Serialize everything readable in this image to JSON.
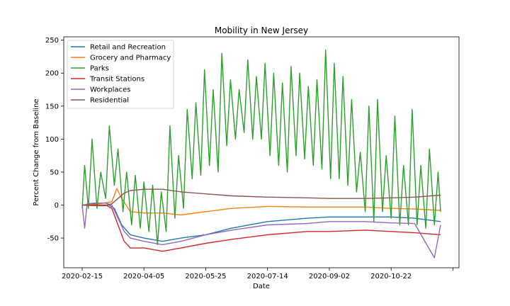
{
  "chart_data": {
    "type": "line",
    "title": "Mobility in New Jersey",
    "xlabel": "Date",
    "ylabel": "Percent Change from Baseline",
    "x_ticks": [
      "2020-02-15",
      "2020-04-05",
      "2020-05-25",
      "2020-07-14",
      "2020-09-02",
      "2020-10-22",
      ""
    ],
    "x_range": [
      "2020-02-15",
      "2020-12-01"
    ],
    "ylim": [
      -95,
      255
    ],
    "y_ticks": [
      -50,
      0,
      50,
      100,
      150,
      200,
      250
    ],
    "grid": false,
    "legend_position": "top-left",
    "series": [
      {
        "name": "Retail and Recreation",
        "color": "#1f77b4",
        "points": [
          [
            "2020-02-15",
            0
          ],
          [
            "2020-02-25",
            2
          ],
          [
            "2020-03-05",
            3
          ],
          [
            "2020-03-12",
            -5
          ],
          [
            "2020-03-18",
            -30
          ],
          [
            "2020-03-25",
            -45
          ],
          [
            "2020-04-05",
            -50
          ],
          [
            "2020-04-20",
            -55
          ],
          [
            "2020-05-05",
            -50
          ],
          [
            "2020-05-25",
            -45
          ],
          [
            "2020-06-15",
            -35
          ],
          [
            "2020-07-14",
            -25
          ],
          [
            "2020-08-15",
            -20
          ],
          [
            "2020-09-02",
            -18
          ],
          [
            "2020-10-01",
            -18
          ],
          [
            "2020-10-22",
            -18
          ],
          [
            "2020-11-10",
            -20
          ],
          [
            "2020-12-01",
            -25
          ]
        ]
      },
      {
        "name": "Grocery and Pharmacy",
        "color": "#ff7f0e",
        "points": [
          [
            "2020-02-15",
            0
          ],
          [
            "2020-02-25",
            1
          ],
          [
            "2020-03-10",
            5
          ],
          [
            "2020-03-14",
            25
          ],
          [
            "2020-03-18",
            10
          ],
          [
            "2020-03-25",
            -10
          ],
          [
            "2020-04-05",
            -12
          ],
          [
            "2020-04-20",
            -12
          ],
          [
            "2020-05-05",
            -15
          ],
          [
            "2020-05-25",
            -10
          ],
          [
            "2020-06-15",
            -5
          ],
          [
            "2020-07-14",
            -2
          ],
          [
            "2020-08-15",
            -3
          ],
          [
            "2020-09-02",
            -3
          ],
          [
            "2020-10-01",
            -3
          ],
          [
            "2020-10-22",
            -5
          ],
          [
            "2020-11-10",
            -6
          ],
          [
            "2020-12-01",
            -8
          ]
        ]
      },
      {
        "name": "Parks",
        "color": "#2ca02c",
        "points": [
          [
            "2020-02-15",
            -5
          ],
          [
            "2020-02-17",
            60
          ],
          [
            "2020-02-20",
            -5
          ],
          [
            "2020-02-23",
            100
          ],
          [
            "2020-02-27",
            -5
          ],
          [
            "2020-03-01",
            50
          ],
          [
            "2020-03-05",
            10
          ],
          [
            "2020-03-08",
            120
          ],
          [
            "2020-03-12",
            30
          ],
          [
            "2020-03-15",
            85
          ],
          [
            "2020-03-19",
            -10
          ],
          [
            "2020-03-22",
            50
          ],
          [
            "2020-03-26",
            -30
          ],
          [
            "2020-03-29",
            45
          ],
          [
            "2020-04-02",
            -35
          ],
          [
            "2020-04-05",
            35
          ],
          [
            "2020-04-09",
            -40
          ],
          [
            "2020-04-12",
            30
          ],
          [
            "2020-04-16",
            -60
          ],
          [
            "2020-04-19",
            20
          ],
          [
            "2020-04-23",
            -40
          ],
          [
            "2020-04-26",
            120
          ],
          [
            "2020-04-30",
            -20
          ],
          [
            "2020-05-03",
            75
          ],
          [
            "2020-05-07",
            -5
          ],
          [
            "2020-05-10",
            145
          ],
          [
            "2020-05-14",
            40
          ],
          [
            "2020-05-17",
            155
          ],
          [
            "2020-05-21",
            45
          ],
          [
            "2020-05-24",
            205
          ],
          [
            "2020-05-28",
            60
          ],
          [
            "2020-05-31",
            175
          ],
          [
            "2020-06-04",
            50
          ],
          [
            "2020-06-07",
            230
          ],
          [
            "2020-06-11",
            90
          ],
          [
            "2020-06-14",
            190
          ],
          [
            "2020-06-18",
            100
          ],
          [
            "2020-06-21",
            175
          ],
          [
            "2020-06-25",
            110
          ],
          [
            "2020-06-28",
            220
          ],
          [
            "2020-07-02",
            100
          ],
          [
            "2020-07-05",
            195
          ],
          [
            "2020-07-09",
            100
          ],
          [
            "2020-07-12",
            215
          ],
          [
            "2020-07-16",
            75
          ],
          [
            "2020-07-19",
            200
          ],
          [
            "2020-07-23",
            60
          ],
          [
            "2020-07-26",
            185
          ],
          [
            "2020-07-30",
            50
          ],
          [
            "2020-08-02",
            210
          ],
          [
            "2020-08-06",
            75
          ],
          [
            "2020-08-09",
            200
          ],
          [
            "2020-08-13",
            70
          ],
          [
            "2020-08-16",
            180
          ],
          [
            "2020-08-20",
            60
          ],
          [
            "2020-08-23",
            190
          ],
          [
            "2020-08-27",
            55
          ],
          [
            "2020-08-30",
            235
          ],
          [
            "2020-09-03",
            40
          ],
          [
            "2020-09-06",
            215
          ],
          [
            "2020-09-10",
            40
          ],
          [
            "2020-09-13",
            195
          ],
          [
            "2020-09-17",
            30
          ],
          [
            "2020-09-20",
            160
          ],
          [
            "2020-09-24",
            20
          ],
          [
            "2020-09-27",
            80
          ],
          [
            "2020-10-01",
            -10
          ],
          [
            "2020-10-04",
            150
          ],
          [
            "2020-10-08",
            -25
          ],
          [
            "2020-10-11",
            160
          ],
          [
            "2020-10-15",
            -10
          ],
          [
            "2020-10-18",
            75
          ],
          [
            "2020-10-22",
            -20
          ],
          [
            "2020-10-25",
            135
          ],
          [
            "2020-10-29",
            -30
          ],
          [
            "2020-11-01",
            60
          ],
          [
            "2020-11-05",
            -30
          ],
          [
            "2020-11-08",
            145
          ],
          [
            "2020-11-12",
            -30
          ],
          [
            "2020-11-15",
            60
          ],
          [
            "2020-11-19",
            -35
          ],
          [
            "2020-11-22",
            85
          ],
          [
            "2020-11-26",
            -30
          ],
          [
            "2020-11-29",
            50
          ],
          [
            "2020-12-01",
            -10
          ]
        ]
      },
      {
        "name": "Transit Stations",
        "color": "#d62728",
        "points": [
          [
            "2020-02-15",
            0
          ],
          [
            "2020-02-25",
            0
          ],
          [
            "2020-03-05",
            0
          ],
          [
            "2020-03-10",
            -5
          ],
          [
            "2020-03-15",
            -30
          ],
          [
            "2020-03-20",
            -55
          ],
          [
            "2020-03-25",
            -65
          ],
          [
            "2020-04-05",
            -65
          ],
          [
            "2020-04-20",
            -70
          ],
          [
            "2020-05-05",
            -65
          ],
          [
            "2020-05-25",
            -58
          ],
          [
            "2020-06-15",
            -52
          ],
          [
            "2020-07-14",
            -45
          ],
          [
            "2020-08-15",
            -40
          ],
          [
            "2020-09-02",
            -40
          ],
          [
            "2020-10-01",
            -38
          ],
          [
            "2020-10-22",
            -40
          ],
          [
            "2020-11-10",
            -42
          ],
          [
            "2020-12-01",
            -45
          ]
        ]
      },
      {
        "name": "Workplaces",
        "color": "#9467bd",
        "points": [
          [
            "2020-02-15",
            0
          ],
          [
            "2020-02-17",
            -35
          ],
          [
            "2020-02-19",
            2
          ],
          [
            "2020-02-25",
            3
          ],
          [
            "2020-03-05",
            3
          ],
          [
            "2020-03-10",
            0
          ],
          [
            "2020-03-15",
            -20
          ],
          [
            "2020-03-20",
            -40
          ],
          [
            "2020-03-25",
            -50
          ],
          [
            "2020-04-05",
            -55
          ],
          [
            "2020-04-20",
            -60
          ],
          [
            "2020-05-05",
            -55
          ],
          [
            "2020-05-25",
            -45
          ],
          [
            "2020-06-15",
            -38
          ],
          [
            "2020-07-14",
            -30
          ],
          [
            "2020-08-15",
            -28
          ],
          [
            "2020-09-02",
            -25
          ],
          [
            "2020-10-01",
            -25
          ],
          [
            "2020-10-22",
            -27
          ],
          [
            "2020-11-10",
            -28
          ],
          [
            "2020-11-26",
            -80
          ],
          [
            "2020-12-01",
            -30
          ]
        ]
      },
      {
        "name": "Residential",
        "color": "#8c564b",
        "points": [
          [
            "2020-02-15",
            0
          ],
          [
            "2020-02-25",
            -1
          ],
          [
            "2020-03-05",
            -1
          ],
          [
            "2020-03-10",
            2
          ],
          [
            "2020-03-15",
            10
          ],
          [
            "2020-03-20",
            18
          ],
          [
            "2020-03-25",
            22
          ],
          [
            "2020-04-05",
            24
          ],
          [
            "2020-04-20",
            24
          ],
          [
            "2020-05-05",
            20
          ],
          [
            "2020-05-25",
            17
          ],
          [
            "2020-06-15",
            14
          ],
          [
            "2020-07-14",
            12
          ],
          [
            "2020-08-15",
            11
          ],
          [
            "2020-09-02",
            10
          ],
          [
            "2020-10-01",
            10
          ],
          [
            "2020-10-22",
            11
          ],
          [
            "2020-11-10",
            12
          ],
          [
            "2020-12-01",
            15
          ]
        ]
      }
    ]
  }
}
